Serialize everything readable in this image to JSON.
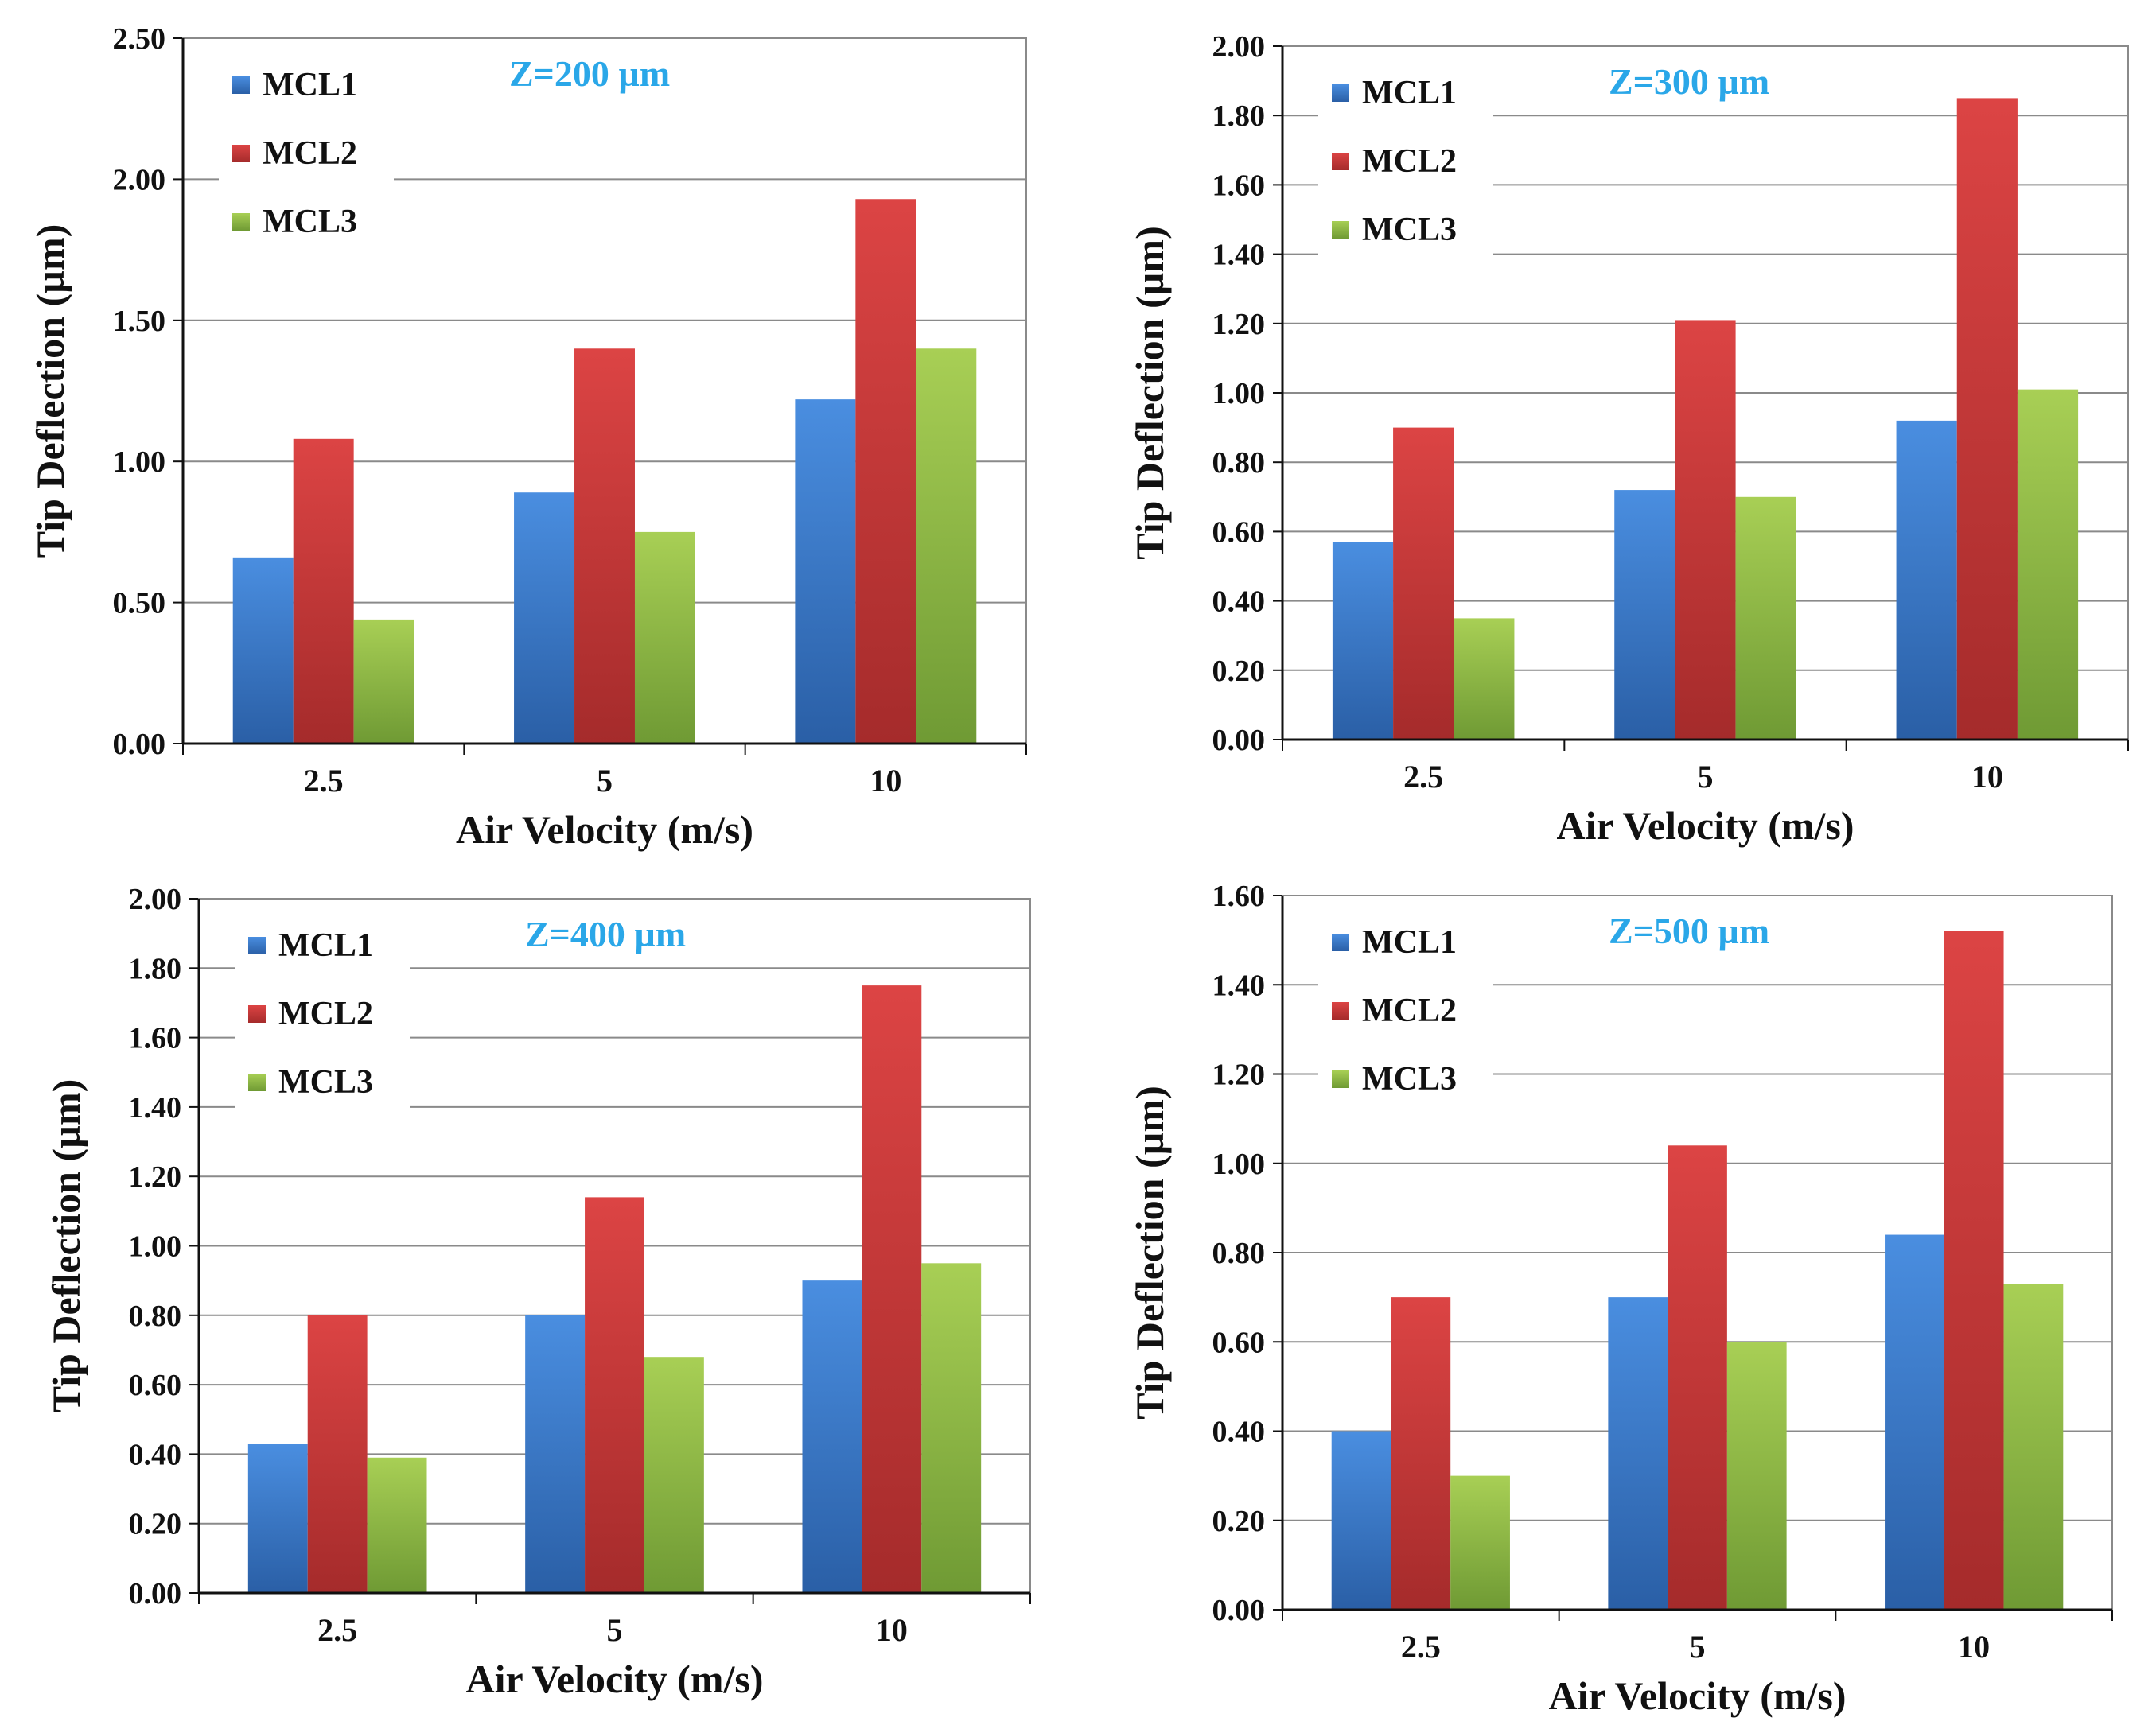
{
  "colors": {
    "MCL1": "#3f7fcf",
    "MCL2": "#d03c3c",
    "MCL3": "#99c24b",
    "annotation": "#2aa7e8",
    "grid": "#8a8a8a",
    "text": "#111111"
  },
  "chart_data": [
    {
      "type": "bar",
      "annotation": "Z=200 µm",
      "xlabel": "Air Velocity (m/s)",
      "ylabel": "Tip Deflection (µm)",
      "categories": [
        "2.5",
        "5",
        "10"
      ],
      "ylim": [
        0,
        2.5
      ],
      "yticks": [
        "0.00",
        "0.50",
        "1.00",
        "1.50",
        "2.00",
        "2.50"
      ],
      "grid": true,
      "legend": "top-left",
      "series": [
        {
          "name": "MCL1",
          "values": [
            0.66,
            0.89,
            1.22
          ]
        },
        {
          "name": "MCL2",
          "values": [
            1.08,
            1.4,
            1.93
          ]
        },
        {
          "name": "MCL3",
          "values": [
            0.44,
            0.75,
            1.4
          ]
        }
      ]
    },
    {
      "type": "bar",
      "annotation": "Z=300 µm",
      "xlabel": "Air Velocity (m/s)",
      "ylabel": "Tip Deflection (µm)",
      "categories": [
        "2.5",
        "5",
        "10"
      ],
      "ylim": [
        0,
        2.0
      ],
      "yticks": [
        "0.00",
        "0.20",
        "0.40",
        "0.60",
        "0.80",
        "1.00",
        "1.20",
        "1.40",
        "1.60",
        "1.80",
        "2.00"
      ],
      "grid": true,
      "legend": "top-left",
      "series": [
        {
          "name": "MCL1",
          "values": [
            0.57,
            0.72,
            0.92
          ]
        },
        {
          "name": "MCL2",
          "values": [
            0.9,
            1.21,
            1.85
          ]
        },
        {
          "name": "MCL3",
          "values": [
            0.35,
            0.7,
            1.01
          ]
        }
      ]
    },
    {
      "type": "bar",
      "annotation": "Z=400 µm",
      "xlabel": "Air Velocity (m/s)",
      "ylabel": "Tip Deflection (µm)",
      "categories": [
        "2.5",
        "5",
        "10"
      ],
      "ylim": [
        0,
        2.0
      ],
      "yticks": [
        "0.00",
        "0.20",
        "0.40",
        "0.60",
        "0.80",
        "1.00",
        "1.20",
        "1.40",
        "1.60",
        "1.80",
        "2.00"
      ],
      "grid": true,
      "legend": "top-left",
      "series": [
        {
          "name": "MCL1",
          "values": [
            0.43,
            0.8,
            0.9
          ]
        },
        {
          "name": "MCL2",
          "values": [
            0.8,
            1.14,
            1.75
          ]
        },
        {
          "name": "MCL3",
          "values": [
            0.39,
            0.68,
            0.95
          ]
        }
      ]
    },
    {
      "type": "bar",
      "annotation": "Z=500 µm",
      "xlabel": "Air Velocity (m/s)",
      "ylabel": "Tip Deflection (µm)",
      "categories": [
        "2.5",
        "5",
        "10"
      ],
      "ylim": [
        0,
        1.6
      ],
      "yticks": [
        "0.00",
        "0.20",
        "0.40",
        "0.60",
        "0.80",
        "1.00",
        "1.20",
        "1.40",
        "1.60"
      ],
      "grid": true,
      "legend": "top-left",
      "series": [
        {
          "name": "MCL1",
          "values": [
            0.4,
            0.7,
            0.84
          ]
        },
        {
          "name": "MCL2",
          "values": [
            0.7,
            1.04,
            1.52
          ]
        },
        {
          "name": "MCL3",
          "values": [
            0.3,
            0.6,
            0.73
          ]
        }
      ]
    }
  ]
}
